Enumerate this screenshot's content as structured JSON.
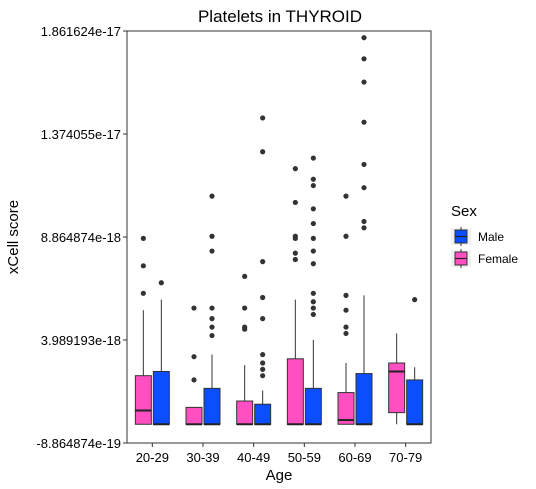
{
  "chart_data": {
    "type": "boxplot",
    "title": "Platelets in THYROID",
    "xlabel": "Age",
    "ylabel": "xCell score",
    "categories": [
      "20-29",
      "30-39",
      "40-49",
      "50-59",
      "60-69",
      "70-79"
    ],
    "y_ticks": [
      "-8.864874e-19",
      "3.989193e-18",
      "8.864874e-18",
      "1.374055e-17",
      "1.861624e-17"
    ],
    "y_tick_values": [
      -8.864874e-19,
      3.989193e-18,
      8.864874e-18,
      1.374055e-17,
      1.861624e-17
    ],
    "ylim": [
      -8.864874e-19,
      1.861624e-17
    ],
    "grid": false,
    "legend": {
      "title": "Sex",
      "position": "right",
      "items": [
        {
          "label": "Male",
          "color": "#0A4EFF"
        },
        {
          "label": "Female",
          "color": "#FF4FC1"
        }
      ]
    },
    "series": [
      {
        "name": "Female",
        "color": "#FF4FC1",
        "boxes": [
          {
            "category": "20-29",
            "min": 0.0,
            "q1": 0.0,
            "median": 6.5e-19,
            "q3": 2.3e-18,
            "max": 5.4e-18,
            "outliers": [
              6.2e-18,
              7.5e-18,
              8.8e-18
            ]
          },
          {
            "category": "30-39",
            "min": 0.0,
            "q1": 0.0,
            "median": 0.0,
            "q3": 8e-19,
            "max": 8e-19,
            "outliers": [
              2.1e-18,
              3.2e-18,
              5.5e-18
            ]
          },
          {
            "category": "40-49",
            "min": 0.0,
            "q1": 0.0,
            "median": 0.0,
            "q3": 1.1e-18,
            "max": 2.8e-18,
            "outliers": [
              4.5e-18,
              4.6e-18,
              5.5e-18,
              7e-18
            ]
          },
          {
            "category": "50-59",
            "min": 0.0,
            "q1": 0.0,
            "median": 0.0,
            "q3": 3.1e-18,
            "max": 5.9e-18,
            "outliers": [
              7.8e-18,
              8.1e-18,
              8.8e-18,
              8.9e-18,
              1.05e-17,
              1.21e-17
            ]
          },
          {
            "category": "60-69",
            "min": 0.0,
            "q1": 0.0,
            "median": 2e-19,
            "q3": 1.5e-18,
            "max": 2.9e-18,
            "outliers": [
              4.3e-18,
              4.6e-18,
              5.4e-18,
              6.1e-18,
              8.9e-18,
              1.08e-17
            ]
          },
          {
            "category": "70-79",
            "min": 0.0,
            "q1": 5.5e-19,
            "median": 2.5e-18,
            "q3": 2.9e-18,
            "max": 4.3e-18,
            "outliers": []
          }
        ]
      },
      {
        "name": "Male",
        "color": "#0A4EFF",
        "boxes": [
          {
            "category": "20-29",
            "min": 0.0,
            "q1": 0.0,
            "median": 0.0,
            "q3": 2.5e-18,
            "max": 5.9e-18,
            "outliers": [
              6.7e-18
            ]
          },
          {
            "category": "30-39",
            "min": 0.0,
            "q1": 0.0,
            "median": 0.0,
            "q3": 1.7e-18,
            "max": 3.3e-18,
            "outliers": [
              4.2e-18,
              4.6e-18,
              5e-18,
              5.5e-18,
              8.2e-18,
              8.9e-18,
              1.08e-17
            ]
          },
          {
            "category": "40-49",
            "min": 0.0,
            "q1": 0.0,
            "median": 0.0,
            "q3": 9.5e-19,
            "max": 1.6e-18,
            "outliers": [
              2.3e-18,
              2.6e-18,
              2.9e-18,
              3.3e-18,
              5e-18,
              6e-18,
              7.7e-18,
              1.29e-17,
              1.45e-17
            ]
          },
          {
            "category": "50-59",
            "min": 0.0,
            "q1": 0.0,
            "median": 0.0,
            "q3": 1.7e-18,
            "max": 4e-18,
            "outliers": [
              5.2e-18,
              5.5e-18,
              5.8e-18,
              6.2e-18,
              7.6e-18,
              8.2e-18,
              8.8e-18,
              9.5e-18,
              1.02e-17,
              1.13e-17,
              1.16e-17,
              1.26e-17
            ]
          },
          {
            "category": "60-69",
            "min": 0.0,
            "q1": 0.0,
            "median": 0.0,
            "q3": 2.4e-18,
            "max": 6.1e-18,
            "outliers": [
              9.3e-18,
              9.6e-18,
              1.12e-17,
              1.23e-17,
              1.43e-17,
              1.62e-17,
              1.73e-17,
              1.83e-17
            ]
          },
          {
            "category": "70-79",
            "min": 0.0,
            "q1": 0.0,
            "median": 0.0,
            "q3": 2.1e-18,
            "max": 2.7e-18,
            "outliers": [
              5.9e-18
            ]
          }
        ]
      }
    ]
  }
}
